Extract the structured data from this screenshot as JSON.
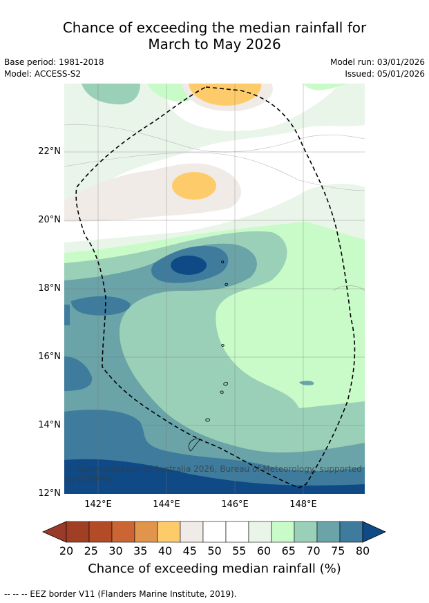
{
  "title_line1": "Chance of exceeding the median rainfall for",
  "title_line2": "March to May 2026",
  "meta": {
    "base_period": "Base period: 1981-2018",
    "model": "Model: ACCESS-S2",
    "model_run": "Model run: 03/01/2026",
    "issued": "Issued: 05/01/2026"
  },
  "map": {
    "lat_labels": [
      "22°N",
      "20°N",
      "18°N",
      "16°N",
      "14°N",
      "12°N"
    ],
    "lon_labels": [
      "142°E",
      "144°E",
      "146°E",
      "148°E"
    ],
    "copyright": "© Commonwealth of Australia 2026, Bureau of Meteorology, supported by COSPPac"
  },
  "colorbar": {
    "ticks": [
      "20",
      "25",
      "30",
      "35",
      "40",
      "45",
      "50",
      "55",
      "60",
      "65",
      "70",
      "75",
      "80"
    ],
    "colors": [
      "#a13f25",
      "#b34b26",
      "#cb6634",
      "#e0944c",
      "#fdcb6a",
      "#f0ebe6",
      "#ffffff",
      "#ffffff",
      "#eaf5ea",
      "#c8fbc8",
      "#9ad0b8",
      "#6aa3a8",
      "#3e7b9c"
    ],
    "low_color": "#9a3a28",
    "high_color": "#0f4a86",
    "label": "Chance of exceeding median rainfall (%)"
  },
  "footnote": "--  --  -- EEZ border V11 (Flanders Marine Institute, 2019)."
}
